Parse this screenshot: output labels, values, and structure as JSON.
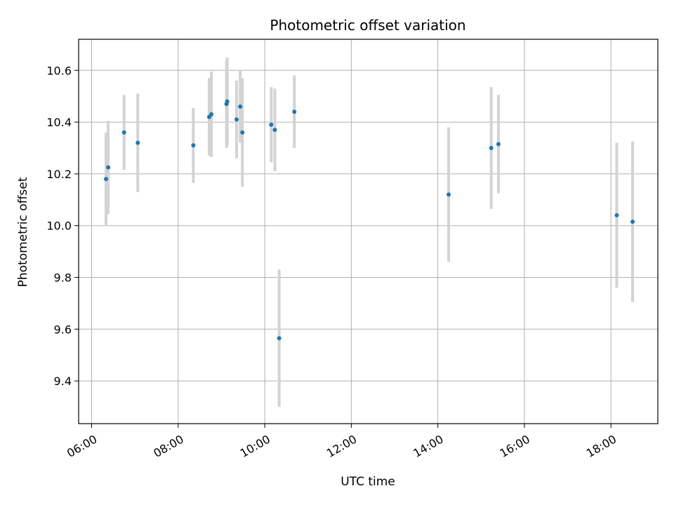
{
  "chart_data": {
    "type": "scatter",
    "title": "Photometric offset variation",
    "xlabel": "UTC time",
    "ylabel": "Photometric offset",
    "x_axis_type": "time",
    "xlim": [
      "05:42",
      "19:05"
    ],
    "ylim": [
      9.235,
      10.72
    ],
    "x_ticks": [
      "06:00",
      "08:00",
      "10:00",
      "12:00",
      "14:00",
      "16:00",
      "18:00"
    ],
    "y_ticks": [
      "9.4",
      "9.6",
      "9.8",
      "10.0",
      "10.2",
      "10.4",
      "10.6"
    ],
    "grid": true,
    "legend": "none",
    "colors": {
      "points": "#1f77b4",
      "errorbars": "#d3d3d3",
      "grid": "#b0b0b0"
    },
    "points": [
      {
        "x": "06:20",
        "y": 10.18,
        "err": 0.18
      },
      {
        "x": "06:23",
        "y": 10.225,
        "err": 0.18
      },
      {
        "x": "06:45",
        "y": 10.36,
        "err": 0.145
      },
      {
        "x": "07:04",
        "y": 10.32,
        "err": 0.19
      },
      {
        "x": "08:21",
        "y": 10.31,
        "err": 0.145
      },
      {
        "x": "08:43",
        "y": 10.42,
        "err": 0.15
      },
      {
        "x": "08:46",
        "y": 10.43,
        "err": 0.165
      },
      {
        "x": "09:07",
        "y": 10.47,
        "err": 0.17
      },
      {
        "x": "09:08",
        "y": 10.48,
        "err": 0.17
      },
      {
        "x": "09:21",
        "y": 10.41,
        "err": 0.15
      },
      {
        "x": "09:26",
        "y": 10.46,
        "err": 0.14
      },
      {
        "x": "09:29",
        "y": 10.36,
        "err": 0.21
      },
      {
        "x": "10:09",
        "y": 10.39,
        "err": 0.145
      },
      {
        "x": "10:14",
        "y": 10.37,
        "err": 0.16
      },
      {
        "x": "10:20",
        "y": 9.565,
        "err": 0.265
      },
      {
        "x": "10:41",
        "y": 10.44,
        "err": 0.14
      },
      {
        "x": "14:15",
        "y": 10.12,
        "err": 0.26
      },
      {
        "x": "15:14",
        "y": 10.3,
        "err": 0.235
      },
      {
        "x": "15:24",
        "y": 10.315,
        "err": 0.19
      },
      {
        "x": "18:08",
        "y": 10.04,
        "err": 0.28
      },
      {
        "x": "18:30",
        "y": 10.015,
        "err": 0.31
      }
    ]
  }
}
